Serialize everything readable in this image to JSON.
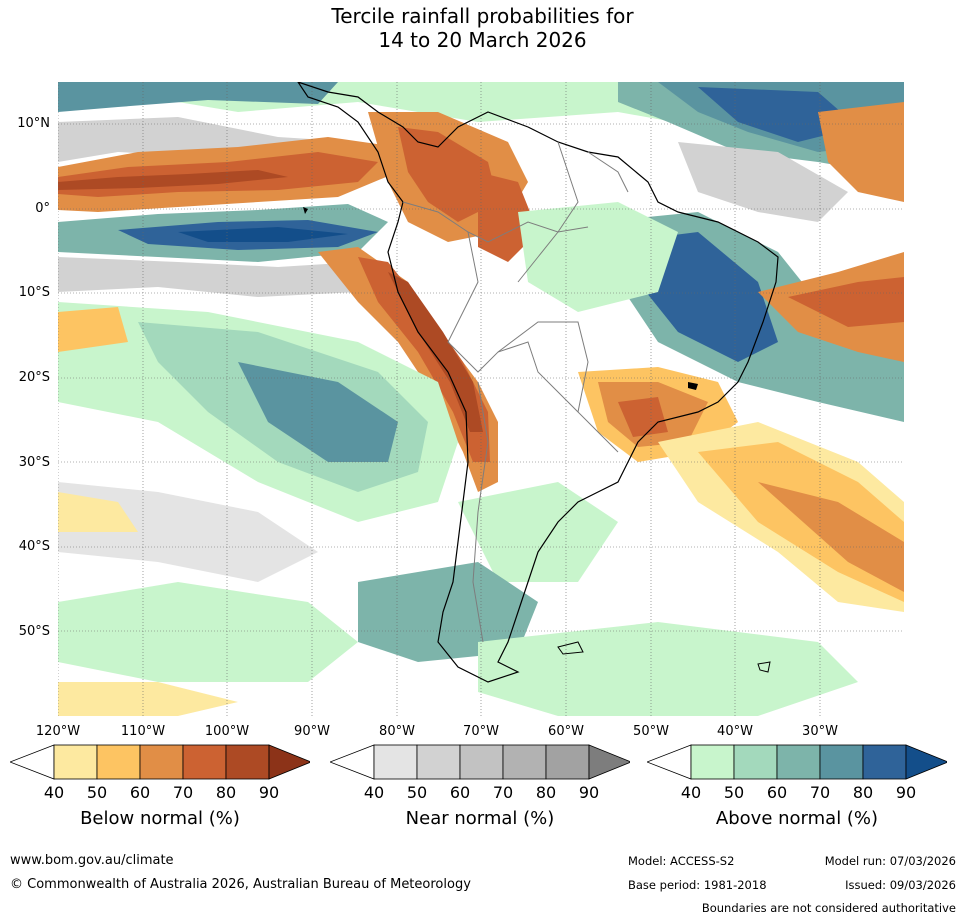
{
  "title": {
    "line1": "Tercile rainfall probabilities for",
    "line2": "14 to 20 March 2026"
  },
  "lat_labels": [
    "10°N",
    "0°",
    "10°S",
    "20°S",
    "30°S",
    "40°S",
    "50°S"
  ],
  "lon_labels": [
    "120°W",
    "110°W",
    "100°W",
    "90°W",
    "80°W",
    "70°W",
    "60°W",
    "50°W",
    "40°W",
    "30°W"
  ],
  "legends": {
    "below": {
      "title": "Below normal (%)",
      "ticks": [
        "40",
        "50",
        "60",
        "70",
        "80",
        "90"
      ],
      "colors": [
        "#ffffff",
        "#fde9a0",
        "#fdc462",
        "#e18e46",
        "#cc6232",
        "#ad4a24",
        "#8c3318"
      ]
    },
    "near": {
      "title": "Near normal (%)",
      "ticks": [
        "40",
        "50",
        "60",
        "70",
        "80",
        "90"
      ],
      "colors": [
        "#ffffff",
        "#e4e4e4",
        "#d2d2d2",
        "#c2c2c2",
        "#b2b2b2",
        "#a2a2a2",
        "#7d7d7d"
      ]
    },
    "above": {
      "title": "Above normal (%)",
      "ticks": [
        "40",
        "50",
        "60",
        "70",
        "80",
        "90"
      ],
      "colors": [
        "#ffffff",
        "#c8f5cc",
        "#a3d9bc",
        "#7db4aa",
        "#5a94a0",
        "#2f6399",
        "#134e8a"
      ]
    }
  },
  "footer": {
    "url": "www.bom.gov.au/climate",
    "copyright": "© Commonwealth of Australia 2026, Australian Bureau of Meteorology",
    "model": "Model: ACCESS-S2",
    "model_run": "Model run: 07/03/2026",
    "base_period": "Base period: 1981-2018",
    "issued": "Issued: 09/03/2026",
    "boundaries": "Boundaries are not considered authoritative"
  }
}
